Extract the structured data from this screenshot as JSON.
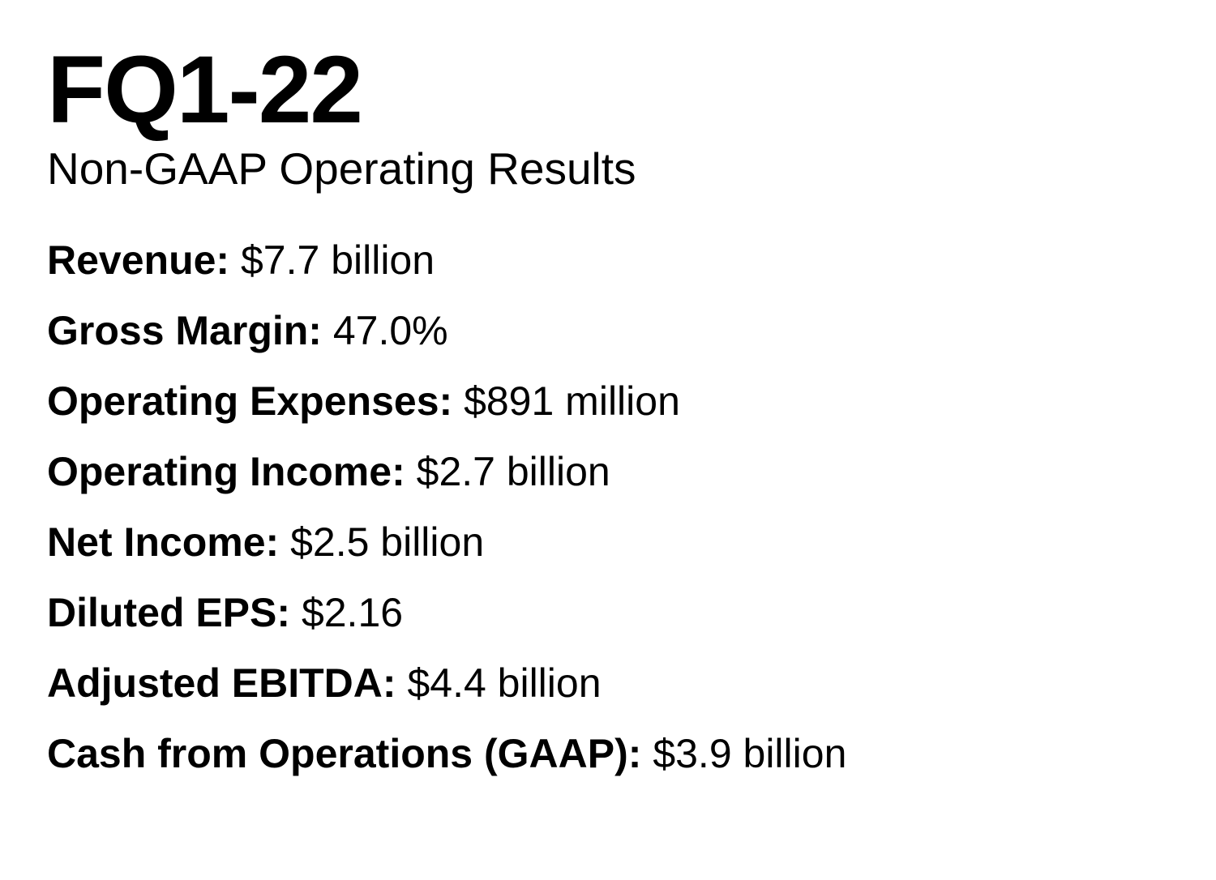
{
  "title": "FQ1-22",
  "subtitle": "Non-GAAP Operating Results",
  "metrics": [
    {
      "label": "Revenue:",
      "value": "$7.7 billion"
    },
    {
      "label": "Gross Margin:",
      "value": "47.0%"
    },
    {
      "label": "Operating Expenses:",
      "value": "$891 million"
    },
    {
      "label": "Operating Income:",
      "value": "$2.7 billion"
    },
    {
      "label": "Net Income:",
      "value": "$2.5 billion"
    },
    {
      "label": "Diluted EPS:",
      "value": "$2.16"
    },
    {
      "label": "Adjusted EBITDA:",
      "value": "$4.4 billion"
    },
    {
      "label": "Cash from Operations (GAAP):",
      "value": "$3.9 billion"
    }
  ]
}
